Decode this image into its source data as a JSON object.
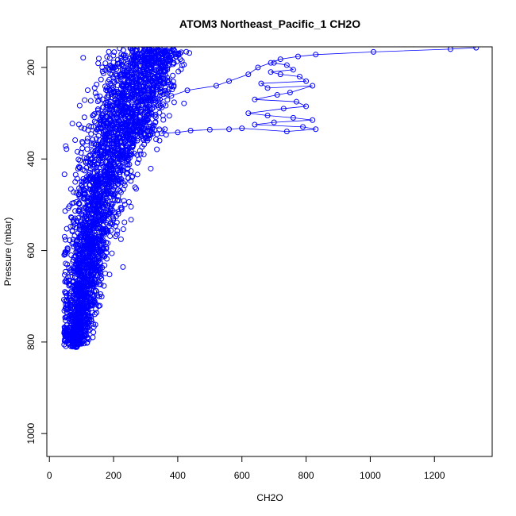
{
  "chart_data": {
    "type": "scatter",
    "title": "ATOM3 Northeast_Pacific_1 CH2O",
    "xlabel": "CH2O",
    "ylabel": "Pressure (mbar)",
    "xlim": [
      -8,
      1380
    ],
    "ylim": [
      1050,
      155
    ],
    "y_reversed": true,
    "x_ticks": [
      0,
      200,
      400,
      600,
      800,
      1000,
      1200
    ],
    "y_ticks": [
      200,
      400,
      600,
      800,
      1000
    ],
    "marker": "open-circle",
    "connected": true,
    "color": "#0000ff",
    "series": [
      {
        "profile_descent": [
          [
            1330,
            157
          ],
          [
            1250,
            160
          ],
          [
            1010,
            166
          ],
          [
            830,
            172
          ],
          [
            775,
            176
          ],
          [
            720,
            182
          ],
          [
            690,
            190
          ],
          [
            650,
            200
          ],
          [
            620,
            215
          ],
          [
            560,
            230
          ],
          [
            520,
            240
          ],
          [
            430,
            250
          ],
          [
            380,
            262
          ],
          [
            340,
            275
          ],
          [
            320,
            290
          ],
          [
            310,
            305
          ],
          [
            300,
            320
          ],
          [
            290,
            335
          ],
          [
            275,
            350
          ],
          [
            260,
            365
          ],
          [
            245,
            380
          ],
          [
            230,
            395
          ],
          [
            215,
            410
          ],
          [
            200,
            425
          ],
          [
            190,
            440
          ],
          [
            180,
            455
          ],
          [
            170,
            470
          ],
          [
            160,
            485
          ],
          [
            152,
            500
          ],
          [
            145,
            515
          ],
          [
            138,
            530
          ],
          [
            132,
            545
          ],
          [
            126,
            560
          ],
          [
            120,
            575
          ],
          [
            115,
            590
          ],
          [
            110,
            605
          ],
          [
            106,
            620
          ],
          [
            102,
            635
          ],
          [
            98,
            650
          ],
          [
            95,
            665
          ],
          [
            92,
            680
          ],
          [
            89,
            695
          ],
          [
            86,
            710
          ],
          [
            84,
            725
          ],
          [
            82,
            740
          ],
          [
            80,
            755
          ],
          [
            78,
            770
          ],
          [
            76,
            785
          ],
          [
            74,
            800
          ],
          [
            72,
            810
          ]
        ]
      },
      {
        "outflow_cluster": [
          [
            700,
            190
          ],
          [
            740,
            195
          ],
          [
            760,
            205
          ],
          [
            690,
            210
          ],
          [
            720,
            215
          ],
          [
            780,
            220
          ],
          [
            800,
            230
          ],
          [
            660,
            235
          ],
          [
            680,
            245
          ],
          [
            820,
            240
          ],
          [
            750,
            255
          ],
          [
            710,
            260
          ],
          [
            640,
            270
          ],
          [
            770,
            275
          ],
          [
            800,
            285
          ],
          [
            730,
            290
          ],
          [
            620,
            300
          ],
          [
            680,
            305
          ],
          [
            760,
            310
          ],
          [
            820,
            315
          ],
          [
            700,
            320
          ],
          [
            640,
            325
          ],
          [
            790,
            330
          ],
          [
            830,
            335
          ],
          [
            740,
            340
          ],
          [
            600,
            333
          ],
          [
            560,
            335
          ],
          [
            500,
            336
          ],
          [
            440,
            338
          ],
          [
            400,
            342
          ],
          [
            350,
            344
          ],
          [
            360,
            335
          ],
          [
            310,
            330
          ]
        ]
      },
      {
        "background_cloud": "generated"
      }
    ]
  }
}
